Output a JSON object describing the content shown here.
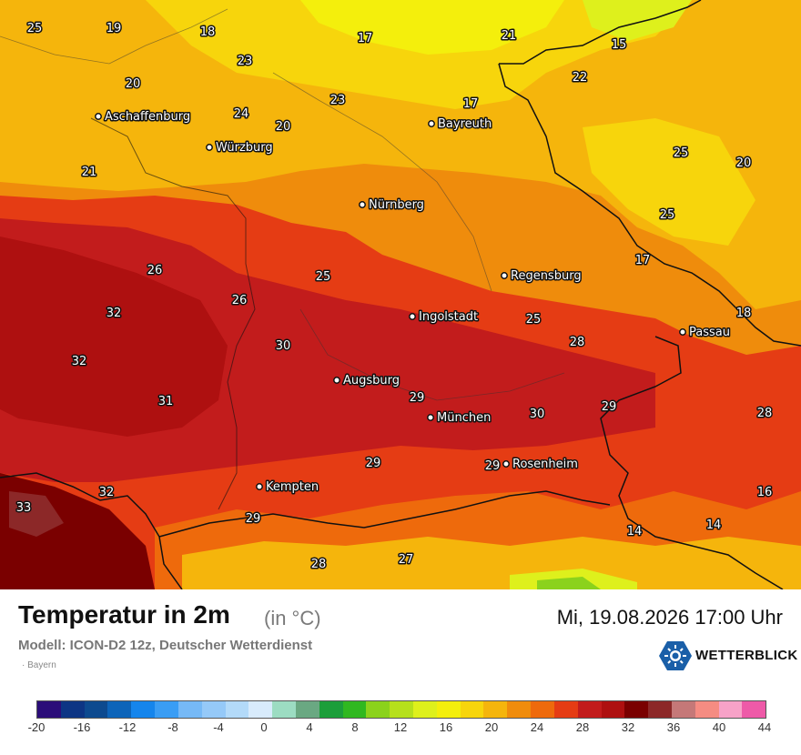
{
  "title": "Temperatur in 2m",
  "unit": "(in °C)",
  "datetime": "Mi, 19.08.2026 17:00 Uhr",
  "model": "Modell: ICON-D2 12z, Deutscher Wetterdienst",
  "region": "· Bayern",
  "brand": "WETTERBLICK",
  "cities": [
    {
      "name": "Aschaffenburg"
    },
    {
      "name": "Würzburg"
    },
    {
      "name": "Bayreuth"
    },
    {
      "name": "Nürnberg"
    },
    {
      "name": "Regensburg"
    },
    {
      "name": "Ingolstadt"
    },
    {
      "name": "Passau"
    },
    {
      "name": "Augsburg"
    },
    {
      "name": "München"
    },
    {
      "name": "Rosenheim"
    },
    {
      "name": "Kempten"
    }
  ],
  "temperatures": [
    "25",
    "19",
    "18",
    "17",
    "21",
    "15",
    "23",
    "20",
    "24",
    "23",
    "17",
    "22",
    "20",
    "21",
    "25",
    "20",
    "25",
    "26",
    "25",
    "17",
    "32",
    "26",
    "18",
    "25",
    "28",
    "30",
    "32",
    "31",
    "29",
    "29",
    "30",
    "28",
    "29",
    "29",
    "16",
    "33",
    "32",
    "29",
    "14",
    "14",
    "28",
    "27"
  ],
  "legend": {
    "colors": [
      "#2b0d79",
      "#0d3584",
      "#0d4a8f",
      "#0d64b9",
      "#1585ec",
      "#3a9df4",
      "#76b9f6",
      "#95c9f8",
      "#b3daf9",
      "#d8ebfc",
      "#9cdcc2",
      "#6aa882",
      "#1c9e3a",
      "#30b820",
      "#8bd21c",
      "#b6e01c",
      "#def01c",
      "#f4ef0c",
      "#f7d50c",
      "#f5b50c",
      "#f08c0c",
      "#ee6a0c",
      "#e53c14",
      "#c21c1c",
      "#ae1010",
      "#7a0000",
      "#8c2828",
      "#c57878",
      "#f58c82",
      "#f7a2c8",
      "#ee5aa8"
    ],
    "ticks": [
      "-20",
      "-16",
      "-12",
      "-8",
      "-4",
      "0",
      "4",
      "8",
      "12",
      "16",
      "20",
      "24",
      "28",
      "32",
      "36",
      "40",
      "44"
    ]
  }
}
